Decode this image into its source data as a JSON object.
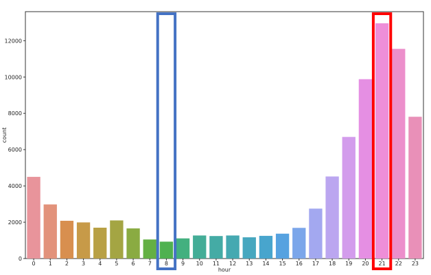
{
  "chart_data": {
    "type": "bar",
    "xlabel": "hour",
    "ylabel": "count",
    "ylim": [
      0,
      13600
    ],
    "categories": [
      "0",
      "1",
      "2",
      "3",
      "4",
      "5",
      "6",
      "7",
      "8",
      "9",
      "10",
      "11",
      "12",
      "13",
      "14",
      "15",
      "16",
      "17",
      "18",
      "19",
      "20",
      "21",
      "22",
      "23"
    ],
    "values": [
      4500,
      2980,
      2080,
      1990,
      1700,
      2100,
      1660,
      1050,
      930,
      1110,
      1270,
      1240,
      1270,
      1170,
      1250,
      1370,
      1690,
      2750,
      4520,
      6700,
      9880,
      12960,
      11550,
      7810
    ],
    "yticks": [
      0,
      2000,
      4000,
      6000,
      8000,
      10000,
      12000
    ],
    "colors": [
      "#e8949b",
      "#e2927b",
      "#d88f4f",
      "#c79a48",
      "#b8a044",
      "#a4a543",
      "#8aab42",
      "#64b044",
      "#4fb150",
      "#43b07f",
      "#44ad97",
      "#44aba5",
      "#45a9b1",
      "#47a7bf",
      "#48a5cd",
      "#56a2e0",
      "#7ba6ea",
      "#a3a8f0",
      "#bba6f0",
      "#d39cec",
      "#e58fe3",
      "#ee8ed8",
      "#ec8fcb",
      "#e990b8"
    ],
    "grid": false,
    "annotations": [
      {
        "category": "8",
        "color": "#4472c4"
      },
      {
        "category": "21",
        "color": "#ff0000"
      }
    ]
  }
}
